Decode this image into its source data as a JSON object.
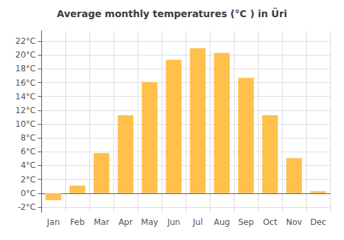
{
  "chart_data": {
    "type": "bar",
    "title": "Average monthly temperatures (°C ) in Üri",
    "categories": [
      "Jan",
      "Feb",
      "Mar",
      "Apr",
      "May",
      "Jun",
      "Jul",
      "Aug",
      "Sep",
      "Oct",
      "Nov",
      "Dec"
    ],
    "values": [
      -1.0,
      1.1,
      5.8,
      11.3,
      16.1,
      19.3,
      21.0,
      20.3,
      16.7,
      11.3,
      5.1,
      0.3
    ],
    "color": "#FFC04C",
    "ylim": [
      -2.8,
      23.5
    ],
    "yticks": [
      {
        "value": -2,
        "label": "-2°C"
      },
      {
        "value": 0,
        "label": "0°C"
      },
      {
        "value": 2,
        "label": "2°C"
      },
      {
        "value": 4,
        "label": "4°C"
      },
      {
        "value": 6,
        "label": "6°C"
      },
      {
        "value": 8,
        "label": "8°C"
      },
      {
        "value": 10,
        "label": "10°C"
      },
      {
        "value": 12,
        "label": "12°C"
      },
      {
        "value": 14,
        "label": "14°C"
      },
      {
        "value": 16,
        "label": "16°C"
      },
      {
        "value": 18,
        "label": "18°C"
      },
      {
        "value": 20,
        "label": "20°C"
      },
      {
        "value": 22,
        "label": "22°C"
      }
    ],
    "grid": true
  }
}
